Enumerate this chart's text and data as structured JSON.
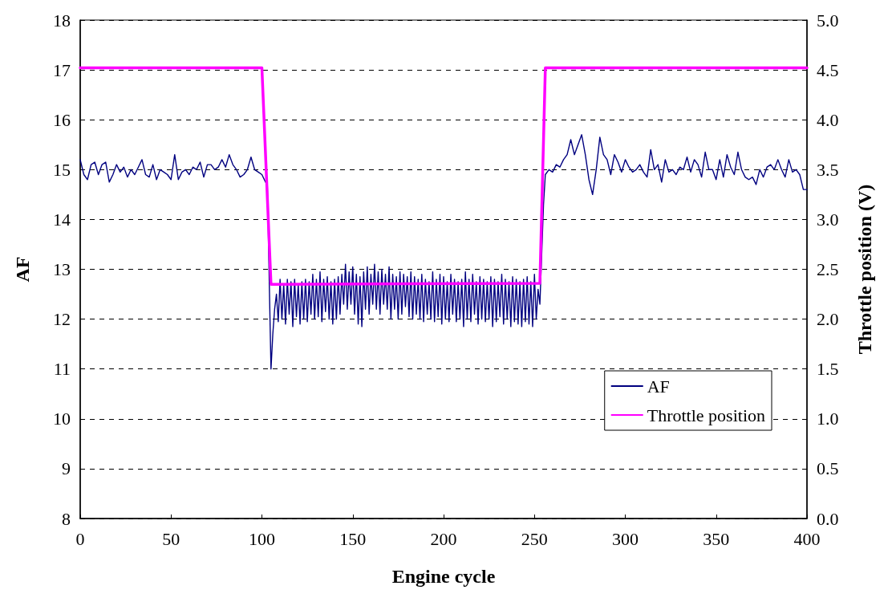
{
  "chart_data": {
    "type": "line",
    "xlabel": "Engine cycle",
    "ylabel": "AF",
    "y2label": "Throttle position (V)",
    "xlim": [
      0,
      400
    ],
    "xticks": [
      0,
      50,
      100,
      150,
      200,
      250,
      300,
      350,
      400
    ],
    "ylim": [
      8,
      18
    ],
    "yticks": [
      8,
      9,
      10,
      11,
      12,
      13,
      14,
      15,
      16,
      17,
      18
    ],
    "y2lim": [
      0,
      5
    ],
    "y2ticks": [
      {
        "value": 0,
        "label": "0.0"
      },
      {
        "value": 0.5,
        "label": "0.5"
      },
      {
        "value": 1,
        "label": "1.0"
      },
      {
        "value": 1.5,
        "label": "1.5"
      },
      {
        "value": 2,
        "label": "2.0"
      },
      {
        "value": 2.5,
        "label": "2.5"
      },
      {
        "value": 3,
        "label": "3.0"
      },
      {
        "value": 3.5,
        "label": "3.5"
      },
      {
        "value": 4,
        "label": "4.0"
      },
      {
        "value": 4.5,
        "label": "4.5"
      },
      {
        "value": 5,
        "label": "5.0"
      }
    ],
    "grid": "y",
    "legend": "bottom right",
    "marker": "none",
    "line_style": "solid",
    "series": [
      {
        "name": "AF",
        "color": "#000080",
        "x": [
          0,
          2,
          4,
          6,
          8,
          10,
          12,
          14,
          16,
          18,
          20,
          22,
          24,
          26,
          28,
          30,
          32,
          34,
          36,
          38,
          40,
          42,
          44,
          46,
          48,
          50,
          52,
          54,
          56,
          58,
          60,
          62,
          64,
          66,
          68,
          70,
          72,
          74,
          76,
          78,
          80,
          82,
          84,
          86,
          88,
          90,
          92,
          94,
          96,
          98,
          100,
          102,
          103,
          105,
          106,
          107,
          108,
          109,
          110,
          111,
          112,
          113,
          114,
          115,
          116,
          117,
          118,
          119,
          120,
          121,
          122,
          123,
          124,
          125,
          126,
          127,
          128,
          129,
          130,
          131,
          132,
          133,
          134,
          135,
          136,
          137,
          138,
          139,
          140,
          141,
          142,
          143,
          144,
          145,
          146,
          147,
          148,
          149,
          150,
          151,
          152,
          153,
          154,
          155,
          156,
          157,
          158,
          159,
          160,
          161,
          162,
          163,
          164,
          165,
          166,
          167,
          168,
          169,
          170,
          171,
          172,
          173,
          174,
          175,
          176,
          177,
          178,
          179,
          180,
          181,
          182,
          183,
          184,
          185,
          186,
          187,
          188,
          189,
          190,
          191,
          192,
          193,
          194,
          195,
          196,
          197,
          198,
          199,
          200,
          201,
          202,
          203,
          204,
          205,
          206,
          207,
          208,
          209,
          210,
          211,
          212,
          213,
          214,
          215,
          216,
          217,
          218,
          219,
          220,
          221,
          222,
          223,
          224,
          225,
          226,
          227,
          228,
          229,
          230,
          231,
          232,
          233,
          234,
          235,
          236,
          237,
          238,
          239,
          240,
          241,
          242,
          243,
          244,
          245,
          246,
          247,
          248,
          249,
          250,
          251,
          252,
          253,
          255,
          256,
          258,
          260,
          262,
          264,
          266,
          268,
          270,
          272,
          274,
          276,
          278,
          280,
          282,
          284,
          286,
          288,
          290,
          292,
          294,
          296,
          298,
          300,
          302,
          304,
          306,
          308,
          310,
          312,
          314,
          316,
          318,
          320,
          322,
          324,
          326,
          328,
          330,
          332,
          334,
          336,
          338,
          340,
          342,
          344,
          346,
          348,
          350,
          352,
          354,
          356,
          358,
          360,
          362,
          364,
          366,
          368,
          370,
          372,
          374,
          376,
          378,
          380,
          382,
          384,
          386,
          388,
          390,
          392,
          394,
          396,
          398,
          400
        ],
        "values": [
          15.2,
          14.9,
          14.8,
          15.1,
          15.15,
          14.9,
          15.1,
          15.15,
          14.75,
          14.9,
          15.1,
          14.95,
          15.05,
          14.85,
          15.0,
          14.9,
          15.05,
          15.2,
          14.9,
          14.85,
          15.1,
          14.8,
          15.0,
          14.95,
          14.9,
          14.8,
          15.3,
          14.8,
          14.95,
          15.0,
          14.9,
          15.05,
          15.0,
          15.15,
          14.85,
          15.1,
          15.1,
          15.0,
          15.05,
          15.2,
          15.05,
          15.3,
          15.1,
          15.0,
          14.85,
          14.9,
          15.0,
          15.25,
          15.0,
          14.95,
          14.9,
          14.75,
          14.7,
          11.0,
          11.7,
          12.2,
          12.5,
          11.95,
          12.8,
          12.0,
          12.7,
          11.9,
          12.8,
          12.1,
          12.75,
          11.85,
          12.8,
          12.05,
          12.7,
          11.9,
          12.75,
          12.0,
          12.8,
          11.95,
          12.75,
          12.1,
          12.9,
          12.0,
          12.8,
          12.05,
          12.95,
          11.95,
          12.8,
          12.15,
          12.85,
          12.0,
          12.75,
          11.9,
          12.8,
          12.0,
          12.85,
          12.1,
          12.9,
          12.3,
          13.1,
          12.2,
          12.95,
          12.3,
          13.05,
          12.1,
          12.9,
          11.9,
          12.85,
          11.85,
          12.95,
          12.2,
          13.05,
          12.1,
          12.9,
          12.3,
          13.1,
          12.2,
          12.95,
          12.1,
          13.0,
          12.3,
          12.9,
          12.2,
          13.05,
          12.0,
          12.9,
          12.2,
          12.85,
          12.0,
          12.95,
          12.1,
          12.9,
          12.25,
          12.85,
          12.05,
          12.95,
          12.0,
          12.85,
          12.1,
          12.8,
          12.0,
          12.9,
          11.95,
          12.8,
          12.1,
          12.75,
          12.0,
          12.95,
          11.95,
          12.8,
          12.05,
          12.9,
          11.9,
          12.85,
          12.0,
          12.75,
          11.95,
          12.9,
          12.1,
          12.8,
          11.95,
          12.75,
          12.0,
          12.8,
          11.85,
          12.95,
          12.0,
          12.8,
          11.95,
          12.9,
          12.1,
          12.75,
          11.9,
          12.85,
          12.0,
          12.8,
          11.95,
          12.75,
          12.0,
          12.85,
          11.85,
          12.8,
          11.95,
          12.75,
          12.05,
          12.9,
          11.9,
          12.8,
          12.0,
          12.75,
          11.85,
          12.85,
          11.95,
          12.8,
          11.9,
          12.75,
          11.85,
          12.8,
          11.95,
          12.85,
          11.9,
          12.75,
          11.85,
          12.9,
          12.0,
          12.6,
          12.3,
          14.3,
          14.9,
          15.0,
          14.95,
          15.1,
          15.05,
          15.2,
          15.3,
          15.6,
          15.3,
          15.5,
          15.7,
          15.3,
          14.8,
          14.5,
          15.0,
          15.65,
          15.3,
          15.2,
          14.9,
          15.3,
          15.15,
          14.95,
          15.2,
          15.05,
          14.95,
          15.0,
          15.1,
          14.95,
          14.85,
          15.4,
          15.0,
          15.1,
          14.75,
          15.2,
          14.95,
          15.0,
          14.9,
          15.05,
          15.0,
          15.25,
          14.95,
          15.2,
          15.1,
          14.85,
          15.35,
          15.0,
          15.0,
          14.8,
          15.2,
          14.85,
          15.3,
          15.05,
          14.9,
          15.35,
          15.0,
          14.85,
          14.8,
          14.85,
          14.7,
          15.0,
          14.85,
          15.05,
          15.1,
          15.0,
          15.2,
          15.0,
          14.85,
          15.2,
          14.95,
          15.0,
          14.9,
          14.6,
          14.6
        ]
      },
      {
        "name": "Throttle position",
        "color": "#ff00ff",
        "axis": "y2",
        "x": [
          0,
          100,
          105,
          253,
          256,
          400
        ],
        "values": [
          4.52,
          4.52,
          2.35,
          2.36,
          4.52,
          4.52
        ]
      }
    ]
  }
}
